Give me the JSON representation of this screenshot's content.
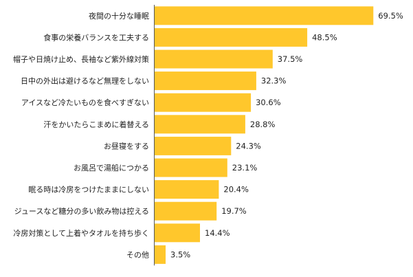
{
  "chart_data": {
    "type": "bar",
    "orientation": "horizontal",
    "bar_color": "#FFC72C",
    "grid": false,
    "legend": "none",
    "xlim": [
      0,
      75
    ],
    "categories": [
      "夜間の十分な睡眠",
      "食事の栄養バランスを工夫する",
      "帽子や日焼け止め、長袖など紫外線対策",
      "日中の外出は避けるなど無理をしない",
      "アイスなど冷たいものを食べすぎない",
      "汗をかいたらこまめに着替える",
      "お昼寝をする",
      "お風呂で湯船につかる",
      "眠る時は冷房をつけたままにしない",
      "ジュースなど糖分の多い飲み物は控える",
      "冷房対策として上着やタオルを持ち歩く",
      "その他"
    ],
    "values": [
      69.5,
      48.5,
      37.5,
      32.3,
      30.6,
      28.8,
      24.3,
      23.1,
      20.4,
      19.7,
      14.4,
      3.5
    ],
    "value_labels": [
      "69.5%",
      "48.5%",
      "37.5%",
      "32.3%",
      "30.6%",
      "28.8%",
      "24.3%",
      "23.1%",
      "20.4%",
      "19.7%",
      "14.4%",
      "3.5%"
    ]
  }
}
